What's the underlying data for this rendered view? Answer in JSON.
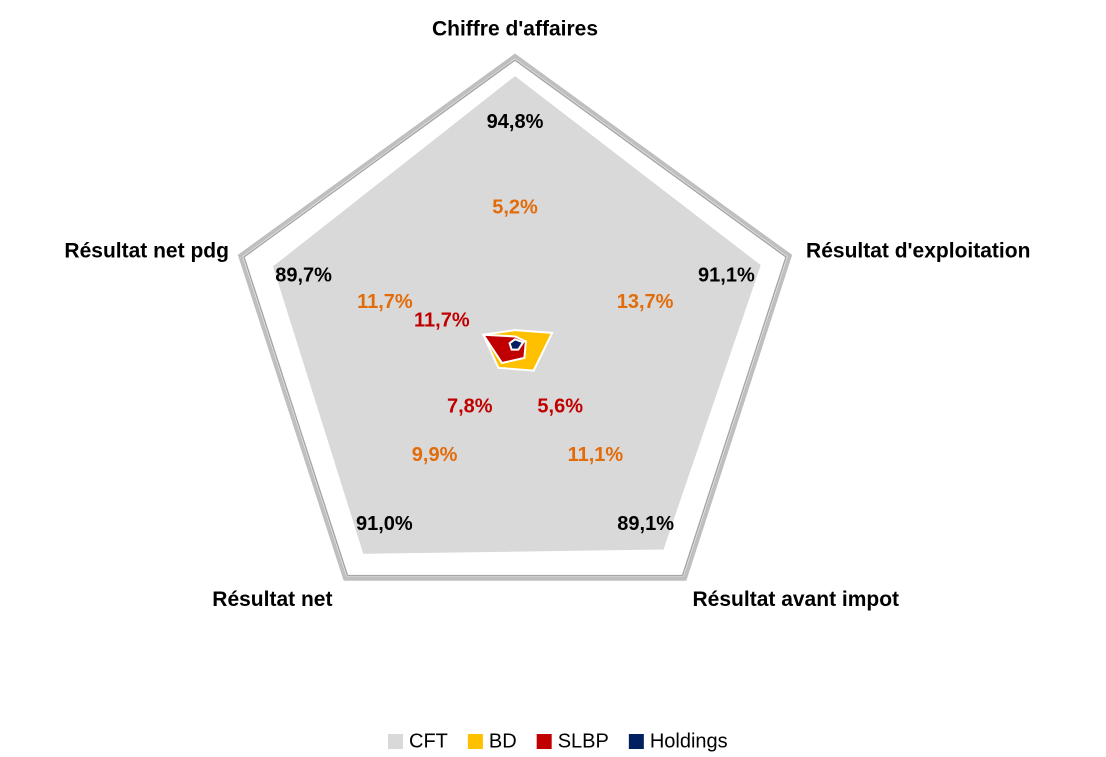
{
  "chart_data": {
    "type": "radar",
    "categories": [
      "Chiffre d'affaires",
      "Résultat d'exploitation",
      "Résultat avant impot",
      "Résultat net",
      "Résultat net pdg"
    ],
    "ylim": [
      0,
      100
    ],
    "series": [
      {
        "name": "CFT",
        "color": "#d9d9d9",
        "label_color": "#000000",
        "values": [
          94.8,
          91.1,
          89.1,
          91.0,
          89.7
        ],
        "value_labels": [
          "94,8%",
          "91,1%",
          "89,1%",
          "91,0%",
          "89,7%"
        ]
      },
      {
        "name": "BD",
        "color": "#ffc000",
        "label_color": "#e36c0a",
        "values": [
          5.2,
          13.7,
          11.1,
          9.9,
          11.7
        ],
        "value_labels": [
          "5,2%",
          "13,7%",
          "11,1%",
          "9,9%",
          "11,7%"
        ]
      },
      {
        "name": "SLBP",
        "color": "#c00000",
        "label_color": "#c00000",
        "values": [
          3,
          4,
          5.6,
          7.8,
          11.7
        ],
        "value_labels": [
          null,
          null,
          "5,6%",
          "7,8%",
          "11,7%"
        ]
      },
      {
        "name": "Holdings",
        "color": "#002060",
        "values": [
          2,
          3,
          2,
          2,
          2
        ]
      }
    ]
  }
}
